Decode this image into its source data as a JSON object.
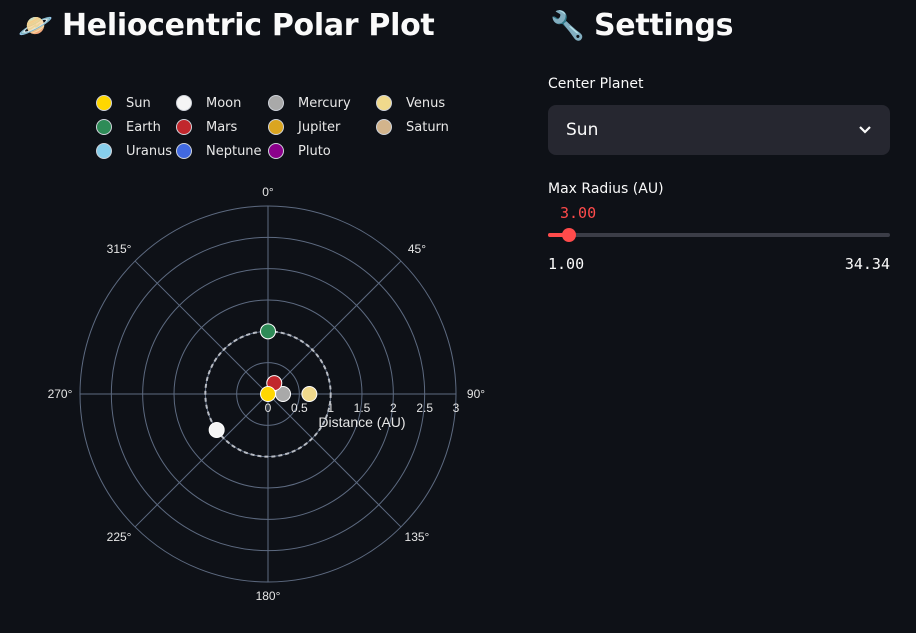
{
  "main": {
    "title": "Heliocentric Polar Plot",
    "title_icon": "🪐"
  },
  "sidebar": {
    "title": "Settings",
    "title_icon": "🔧",
    "center_planet": {
      "label": "Center Planet",
      "value": "Sun"
    },
    "max_radius": {
      "label": "Max Radius (AU)",
      "value": "3.00",
      "min": "1.00",
      "max": "34.34",
      "fraction": 0.06
    }
  },
  "chart_data": {
    "type": "scatter",
    "coordinate_system": "polar",
    "radial_axis": {
      "title": "Distance (AU)",
      "range": [
        0,
        3
      ],
      "ticks": [
        "0",
        "0.5",
        "1",
        "1.5",
        "2",
        "2.5",
        "3"
      ]
    },
    "angular_axis": {
      "ticks": [
        "0°",
        "45°",
        "90°",
        "135°",
        "180°",
        "225°",
        "270°",
        "315°"
      ],
      "direction": "clockwise",
      "rotation": "0° at top"
    },
    "orbit_ring_au": 1.0,
    "legend_placement": "top",
    "series": [
      {
        "name": "Sun",
        "color": "#ffd700",
        "r": 0,
        "theta": 0
      },
      {
        "name": "Moon",
        "color": "#f5f5f5",
        "r": 1.0,
        "theta": 235
      },
      {
        "name": "Mercury",
        "color": "#a9a9a9",
        "r": 0.24,
        "theta": 90
      },
      {
        "name": "Venus",
        "color": "#f0d98c",
        "r": 0.66,
        "theta": 90
      },
      {
        "name": "Earth",
        "color": "#2e8b57",
        "r": 1.0,
        "theta": 0
      },
      {
        "name": "Mars",
        "color": "#c1272d",
        "r": 0.2,
        "theta": 30
      },
      {
        "name": "Jupiter",
        "color": "#daa520",
        "r": null,
        "theta": null
      },
      {
        "name": "Saturn",
        "color": "#d2b48c",
        "r": null,
        "theta": null
      },
      {
        "name": "Uranus",
        "color": "#87ceeb",
        "r": null,
        "theta": null
      },
      {
        "name": "Neptune",
        "color": "#4169e1",
        "r": null,
        "theta": null
      },
      {
        "name": "Pluto",
        "color": "#8b008b",
        "r": null,
        "theta": null
      }
    ]
  }
}
